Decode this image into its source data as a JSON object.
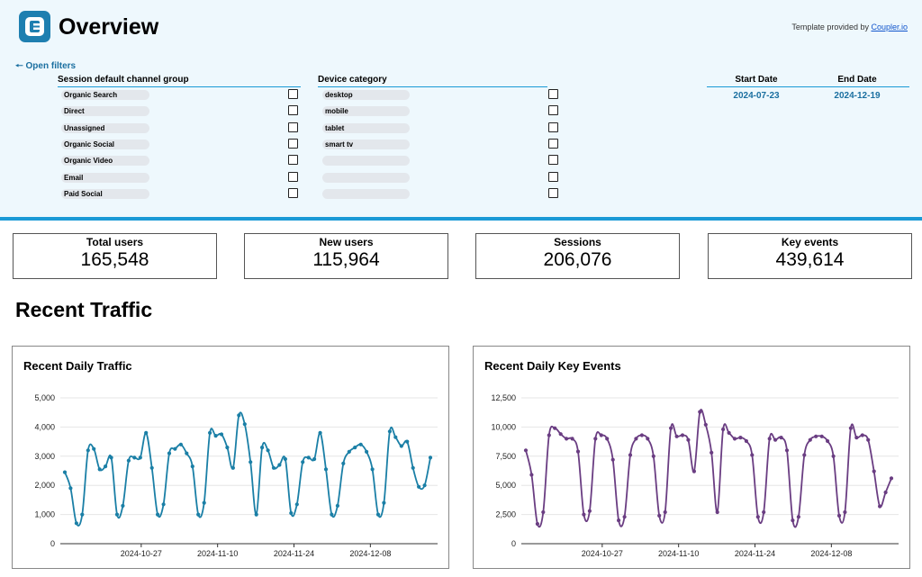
{
  "header": {
    "title": "Overview",
    "template_note_prefix": "Template provided by ",
    "template_note_link": "Coupler.io"
  },
  "filters": {
    "open_label": "🠔 Open filters",
    "channel_group": {
      "title": "Session default channel group",
      "items": [
        "Organic Search",
        "Direct",
        "Unassigned",
        "Organic Social",
        "Organic Video",
        "Email",
        "Paid Social"
      ]
    },
    "device_category": {
      "title": "Device category",
      "items": [
        "desktop",
        "mobile",
        "tablet",
        "smart tv",
        "",
        "",
        ""
      ]
    },
    "start_date": {
      "label": "Start Date",
      "value": "2024-07-23"
    },
    "end_date": {
      "label": "End Date",
      "value": "2024-12-19"
    }
  },
  "kpis": [
    {
      "label": "Total users",
      "value": "165,548"
    },
    {
      "label": "New users",
      "value": "115,964"
    },
    {
      "label": "Sessions",
      "value": "206,076"
    },
    {
      "label": "Key events",
      "value": "439,614"
    }
  ],
  "section_title": "Recent Traffic",
  "colors": {
    "traffic_line": "#1a7fa6",
    "key_events_line": "#6a3d82",
    "accent": "#1a9ad6"
  },
  "chart_data": [
    {
      "type": "line",
      "title": "Recent Daily Traffic",
      "x_start": "2024-10-13",
      "x_end": "2024-12-19",
      "x_ticks": [
        "2024-10-27",
        "2024-11-10",
        "2024-11-24",
        "2024-12-08"
      ],
      "ylim": [
        0,
        5000
      ],
      "y_ticks": [
        "0",
        "1,000",
        "2,000",
        "3,000",
        "4,000",
        "5,000"
      ],
      "series": [
        {
          "values": [
            2450,
            1900,
            700,
            1000,
            3200,
            3250,
            2550,
            2650,
            2950,
            1000,
            1300,
            2850,
            2950,
            2950,
            3800,
            2600,
            1000,
            1350,
            3100,
            3250,
            3400,
            3100,
            2650,
            1000,
            1400,
            3800,
            3700,
            3750,
            3300,
            2600,
            4400,
            4100,
            2800,
            1000,
            3300,
            3200,
            2600,
            2700,
            2900,
            1050,
            1350,
            2800,
            2950,
            2900,
            3800,
            2550,
            1000,
            1300,
            2750,
            3150,
            3300,
            3400,
            3150,
            2550,
            1000,
            1400,
            3850,
            3650,
            3350,
            3500,
            2600,
            1950,
            2000,
            2950
          ]
        }
      ]
    },
    {
      "type": "line",
      "title": "Recent Daily Key Events",
      "x_start": "2024-10-13",
      "x_end": "2024-12-19",
      "x_ticks": [
        "2024-10-27",
        "2024-11-10",
        "2024-11-24",
        "2024-12-08"
      ],
      "ylim": [
        0,
        12500
      ],
      "y_ticks": [
        "0",
        "2,500",
        "5,000",
        "7,500",
        "10,000",
        "12,500"
      ],
      "series": [
        {
          "values": [
            8000,
            5900,
            1700,
            2700,
            9300,
            9900,
            9400,
            9000,
            9000,
            7900,
            2500,
            2800,
            9000,
            9300,
            9000,
            7200,
            2000,
            2300,
            7600,
            9000,
            9300,
            9000,
            7500,
            2400,
            2700,
            9900,
            9200,
            9300,
            8900,
            6200,
            11300,
            10200,
            7800,
            2700,
            9800,
            9500,
            9000,
            9100,
            8800,
            7600,
            2300,
            2700,
            9000,
            8900,
            9100,
            8000,
            2000,
            2300,
            7600,
            8900,
            9200,
            9200,
            8800,
            7500,
            2400,
            2700,
            9900,
            9100,
            9300,
            8900,
            6200,
            3200,
            4400,
            5600
          ]
        }
      ]
    }
  ]
}
